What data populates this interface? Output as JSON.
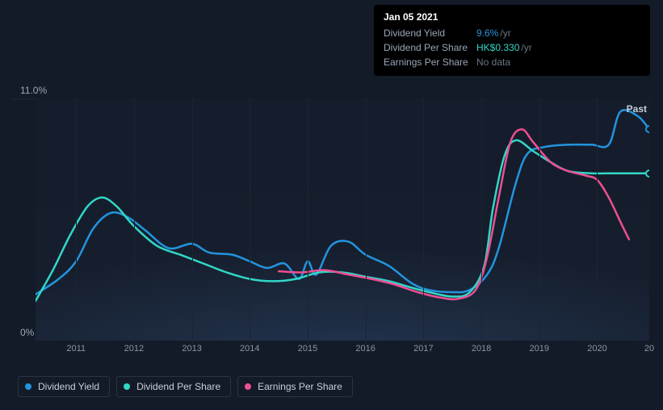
{
  "tooltip": {
    "date": "Jan 05 2021",
    "rows": [
      {
        "label": "Dividend Yield",
        "value": "9.6%",
        "suffix": "/yr",
        "color": "#2394df"
      },
      {
        "label": "Dividend Per Share",
        "value": "HK$0.330",
        "suffix": "/yr",
        "color": "#32d7c7"
      },
      {
        "label": "Earnings Per Share",
        "value": "No data",
        "suffix": "",
        "color": "#6a7585"
      }
    ]
  },
  "chart": {
    "type": "line",
    "background_color": "#131b28",
    "grid_color": "#1b2535",
    "top_line_color": "#1e2836",
    "label_color": "#9aa6b8",
    "past_label": "Past",
    "y_top": "11.0%",
    "y_bot": "0%",
    "ylim": [
      0,
      11
    ],
    "x_years": [
      2011,
      2012,
      2013,
      2014,
      2015,
      2016,
      2017,
      2018,
      2019,
      2020
    ],
    "x_range": [
      2010.3,
      2020.9
    ],
    "x_last_label": "20",
    "line_width": 2.5,
    "series": [
      {
        "name": "Dividend Yield",
        "color": "#2394df",
        "end_dot": true,
        "points": [
          [
            2010.3,
            2.1
          ],
          [
            2010.7,
            2.8
          ],
          [
            2011.0,
            3.6
          ],
          [
            2011.3,
            5.1
          ],
          [
            2011.6,
            5.8
          ],
          [
            2011.9,
            5.6
          ],
          [
            2012.2,
            5.0
          ],
          [
            2012.6,
            4.2
          ],
          [
            2013.0,
            4.4
          ],
          [
            2013.3,
            4.0
          ],
          [
            2013.7,
            3.9
          ],
          [
            2014.0,
            3.6
          ],
          [
            2014.3,
            3.3
          ],
          [
            2014.6,
            3.5
          ],
          [
            2014.85,
            2.8
          ],
          [
            2015.0,
            3.6
          ],
          [
            2015.15,
            3.0
          ],
          [
            2015.4,
            4.3
          ],
          [
            2015.7,
            4.5
          ],
          [
            2016.0,
            3.9
          ],
          [
            2016.4,
            3.4
          ],
          [
            2016.8,
            2.6
          ],
          [
            2017.1,
            2.3
          ],
          [
            2017.5,
            2.2
          ],
          [
            2017.8,
            2.3
          ],
          [
            2018.1,
            3.0
          ],
          [
            2018.3,
            4.2
          ],
          [
            2018.6,
            7.2
          ],
          [
            2018.8,
            8.5
          ],
          [
            2019.1,
            8.8
          ],
          [
            2019.5,
            8.9
          ],
          [
            2019.9,
            8.9
          ],
          [
            2020.2,
            8.9
          ],
          [
            2020.4,
            10.4
          ],
          [
            2020.7,
            10.2
          ],
          [
            2020.9,
            9.6
          ]
        ]
      },
      {
        "name": "Dividend Per Share",
        "color": "#32d7c7",
        "end_dot": true,
        "points": [
          [
            2010.3,
            1.8
          ],
          [
            2010.6,
            3.2
          ],
          [
            2010.9,
            4.8
          ],
          [
            2011.2,
            6.1
          ],
          [
            2011.45,
            6.5
          ],
          [
            2011.7,
            6.1
          ],
          [
            2012.0,
            5.2
          ],
          [
            2012.4,
            4.3
          ],
          [
            2012.8,
            3.9
          ],
          [
            2013.2,
            3.5
          ],
          [
            2013.6,
            3.1
          ],
          [
            2014.0,
            2.8
          ],
          [
            2014.4,
            2.7
          ],
          [
            2014.8,
            2.8
          ],
          [
            2015.2,
            3.1
          ],
          [
            2015.6,
            3.1
          ],
          [
            2016.0,
            2.9
          ],
          [
            2016.4,
            2.7
          ],
          [
            2016.8,
            2.4
          ],
          [
            2017.1,
            2.2
          ],
          [
            2017.5,
            2.0
          ],
          [
            2017.8,
            2.2
          ],
          [
            2018.05,
            3.4
          ],
          [
            2018.2,
            6.0
          ],
          [
            2018.4,
            8.4
          ],
          [
            2018.6,
            9.1
          ],
          [
            2018.9,
            8.6
          ],
          [
            2019.2,
            8.1
          ],
          [
            2019.5,
            7.7
          ],
          [
            2019.9,
            7.6
          ],
          [
            2020.3,
            7.6
          ],
          [
            2020.7,
            7.6
          ],
          [
            2020.9,
            7.6
          ]
        ]
      },
      {
        "name": "Earnings Per Share",
        "color": "#ef4e93",
        "end_dot": false,
        "points": [
          [
            2014.5,
            3.15
          ],
          [
            2014.9,
            3.1
          ],
          [
            2015.3,
            3.2
          ],
          [
            2015.7,
            3.0
          ],
          [
            2016.1,
            2.8
          ],
          [
            2016.5,
            2.55
          ],
          [
            2016.9,
            2.2
          ],
          [
            2017.3,
            1.95
          ],
          [
            2017.6,
            1.9
          ],
          [
            2017.9,
            2.3
          ],
          [
            2018.1,
            3.8
          ],
          [
            2018.3,
            6.5
          ],
          [
            2018.5,
            9.0
          ],
          [
            2018.7,
            9.6
          ],
          [
            2018.9,
            9.0
          ],
          [
            2019.2,
            8.1
          ],
          [
            2019.5,
            7.7
          ],
          [
            2019.8,
            7.5
          ],
          [
            2020.0,
            7.3
          ],
          [
            2020.2,
            6.5
          ],
          [
            2020.4,
            5.4
          ],
          [
            2020.55,
            4.6
          ]
        ]
      }
    ]
  },
  "legend": [
    {
      "label": "Dividend Yield",
      "color": "#2394df"
    },
    {
      "label": "Dividend Per Share",
      "color": "#32d7c7"
    },
    {
      "label": "Earnings Per Share",
      "color": "#ef4e93"
    }
  ]
}
